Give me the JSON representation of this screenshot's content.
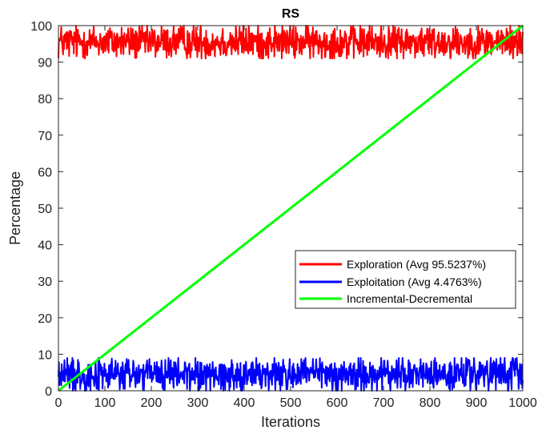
{
  "chart_data": {
    "type": "line",
    "title": "RS",
    "xlabel": "Iterations",
    "ylabel": "Percentage",
    "xlim": [
      0,
      1000
    ],
    "ylim": [
      0,
      100
    ],
    "xticks": [
      0,
      100,
      200,
      300,
      400,
      500,
      600,
      700,
      800,
      900,
      1000
    ],
    "yticks": [
      0,
      10,
      20,
      30,
      40,
      50,
      60,
      70,
      80,
      90,
      100
    ],
    "grid": false,
    "legend_position": "lower-right",
    "series": [
      {
        "name": "Exploration  (Avg 95.5237%)",
        "color": "#ff0000",
        "pattern": "noisy",
        "mean": 95.5237,
        "min": 91,
        "max": 100
      },
      {
        "name": "Exploitation (Avg 4.4763%)",
        "color": "#0000ff",
        "pattern": "noisy",
        "mean": 4.4763,
        "min": 0,
        "max": 9
      },
      {
        "name": "Incremental-Decremental",
        "color": "#00ff00",
        "pattern": "linear",
        "x": [
          0,
          1000
        ],
        "y": [
          0,
          100
        ]
      }
    ]
  }
}
